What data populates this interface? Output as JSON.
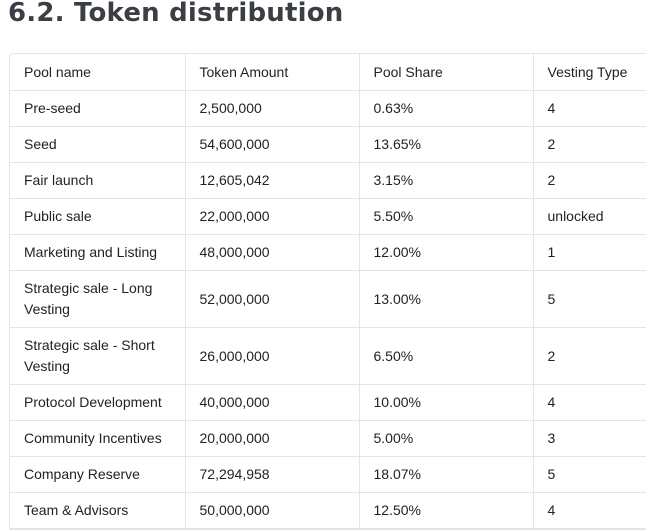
{
  "heading": "6.2. Token distribution",
  "table": {
    "headers": [
      "Pool name",
      "Token Amount",
      "Pool Share",
      "Vesting Type"
    ],
    "rows": [
      [
        "Pre-seed",
        "2,500,000",
        "0.63%",
        "4"
      ],
      [
        "Seed",
        "54,600,000",
        "13.65%",
        "2"
      ],
      [
        "Fair launch",
        "12,605,042",
        "3.15%",
        "2"
      ],
      [
        "Public sale",
        "22,000,000",
        "5.50%",
        "unlocked"
      ],
      [
        "Marketing and Listing",
        "48,000,000",
        "12.00%",
        "1"
      ],
      [
        "Strategic sale - Long Vesting",
        "52,000,000",
        "13.00%",
        "5"
      ],
      [
        "Strategic sale - Short Vesting",
        "26,000,000",
        "6.50%",
        "2"
      ],
      [
        "Protocol Development",
        "40,000,000",
        "10.00%",
        "4"
      ],
      [
        "Community Incentives",
        "20,000,000",
        "5.00%",
        "3"
      ],
      [
        "Company Reserve",
        "72,294,958",
        "18.07%",
        "5"
      ],
      [
        "Team & Advisors",
        "50,000,000",
        "12.50%",
        "4"
      ]
    ]
  }
}
